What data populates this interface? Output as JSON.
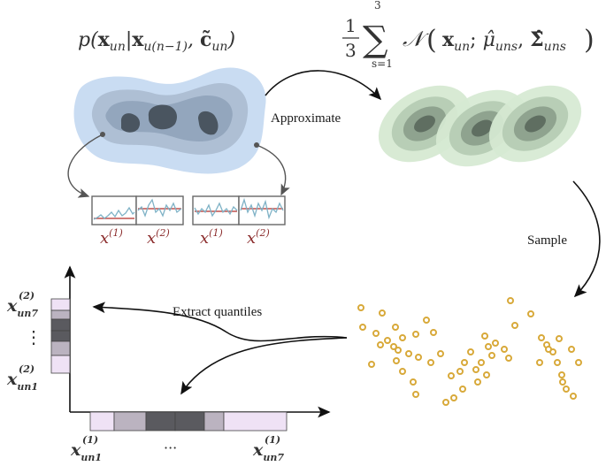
{
  "labels": {
    "approximate": "Approximate",
    "sample": "Sample",
    "extract": "Extract quantiles"
  },
  "formulas": {
    "conditional": "p(x_un | x_u(n−1), c̃_un)",
    "mixture_frac": "1/3",
    "mixture_sum_top": "3",
    "mixture_sum_bottom": "s=1",
    "mixture_body": "𝒩 ( x_un ; μ̂_uns , Σ̂_uns )"
  },
  "series_labels": [
    "x^(1)",
    "x^(2)",
    "x^(1)",
    "x^(2)"
  ],
  "quantile_labels": {
    "y_top": "x_un7^(2)",
    "y_bottom": "x_un1^(2)",
    "y_dots": "⋮",
    "x_left": "x_un1^(1)",
    "x_right": "x_un7^(1)",
    "x_dots": "···"
  },
  "colors": {
    "density_blue": "#c9dcf2",
    "mixture_green": "#d6e9d2",
    "sample_gold": "#d8a93a",
    "series_red": "#8b2c2c",
    "series_line": "#7fb2c6",
    "quantile_dark": "#555555",
    "quantile_light": "#efe2f5"
  }
}
